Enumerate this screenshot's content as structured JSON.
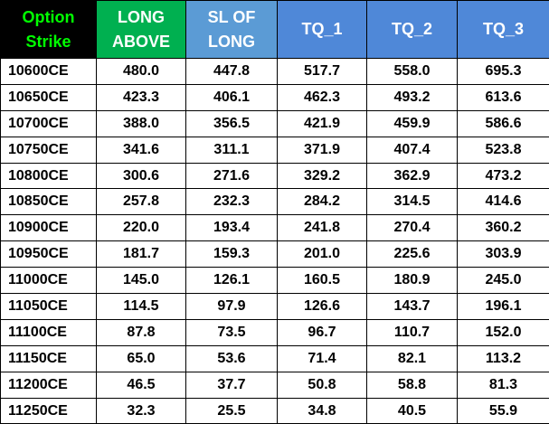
{
  "table": {
    "header": [
      [
        "Option",
        "Strike"
      ],
      [
        "LONG",
        "ABOVE"
      ],
      [
        "SL OF",
        "LONG"
      ],
      [
        "TQ_1"
      ],
      [
        "TQ_2"
      ],
      [
        "TQ_3"
      ]
    ],
    "rows": [
      [
        "10600CE",
        "480.0",
        "447.8",
        "517.7",
        "558.0",
        "695.3"
      ],
      [
        "10650CE",
        "423.3",
        "406.1",
        "462.3",
        "493.2",
        "613.6"
      ],
      [
        "10700CE",
        "388.0",
        "356.5",
        "421.9",
        "459.9",
        "586.6"
      ],
      [
        "10750CE",
        "341.6",
        "311.1",
        "371.9",
        "407.4",
        "523.8"
      ],
      [
        "10800CE",
        "300.6",
        "271.6",
        "329.2",
        "362.9",
        "473.2"
      ],
      [
        "10850CE",
        "257.8",
        "232.3",
        "284.2",
        "314.5",
        "414.6"
      ],
      [
        "10900CE",
        "220.0",
        "193.4",
        "241.8",
        "270.4",
        "360.2"
      ],
      [
        "10950CE",
        "181.7",
        "159.3",
        "201.0",
        "225.6",
        "303.9"
      ],
      [
        "11000CE",
        "145.0",
        "126.1",
        "160.5",
        "180.9",
        "245.0"
      ],
      [
        "11050CE",
        "114.5",
        "97.9",
        "126.6",
        "143.7",
        "196.1"
      ],
      [
        "11100CE",
        "87.8",
        "73.5",
        "96.7",
        "110.7",
        "152.0"
      ],
      [
        "11150CE",
        "65.0",
        "53.6",
        "71.4",
        "82.1",
        "113.2"
      ],
      [
        "11200CE",
        "46.5",
        "37.7",
        "50.8",
        "58.8",
        "81.3"
      ],
      [
        "11250CE",
        "32.3",
        "25.5",
        "34.8",
        "40.5",
        "55.9"
      ]
    ]
  }
}
